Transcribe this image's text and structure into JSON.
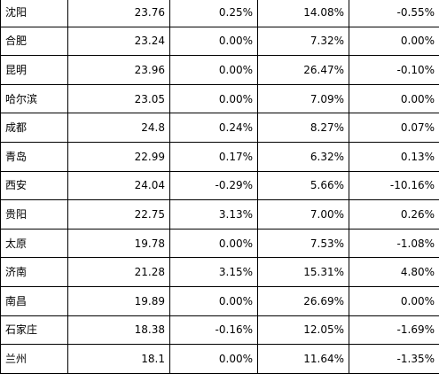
{
  "table": {
    "rows": [
      {
        "city": "沈阳",
        "c1": "23.76",
        "c2": "0.25%",
        "c3": "14.08%",
        "c4": "-0.55%"
      },
      {
        "city": "合肥",
        "c1": "23.24",
        "c2": "0.00%",
        "c3": "7.32%",
        "c4": "0.00%"
      },
      {
        "city": "昆明",
        "c1": "23.96",
        "c2": "0.00%",
        "c3": "26.47%",
        "c4": "-0.10%"
      },
      {
        "city": "哈尔滨",
        "c1": "23.05",
        "c2": "0.00%",
        "c3": "7.09%",
        "c4": "0.00%"
      },
      {
        "city": "成都",
        "c1": "24.8",
        "c2": "0.24%",
        "c3": "8.27%",
        "c4": "0.07%"
      },
      {
        "city": "青岛",
        "c1": "22.99",
        "c2": "0.17%",
        "c3": "6.32%",
        "c4": "0.13%"
      },
      {
        "city": "西安",
        "c1": "24.04",
        "c2": "-0.29%",
        "c3": "5.66%",
        "c4": "-10.16%"
      },
      {
        "city": "贵阳",
        "c1": "22.75",
        "c2": "3.13%",
        "c3": "7.00%",
        "c4": "0.26%"
      },
      {
        "city": "太原",
        "c1": "19.78",
        "c2": "0.00%",
        "c3": "7.53%",
        "c4": "-1.08%"
      },
      {
        "city": "济南",
        "c1": "21.28",
        "c2": "3.15%",
        "c3": "15.31%",
        "c4": "4.80%"
      },
      {
        "city": "南昌",
        "c1": "19.89",
        "c2": "0.00%",
        "c3": "26.69%",
        "c4": "0.00%"
      },
      {
        "city": "石家庄",
        "c1": "18.38",
        "c2": "-0.16%",
        "c3": "12.05%",
        "c4": "-1.69%"
      },
      {
        "city": "兰州",
        "c1": "18.1",
        "c2": "0.00%",
        "c3": "11.64%",
        "c4": "-1.35%"
      }
    ]
  }
}
